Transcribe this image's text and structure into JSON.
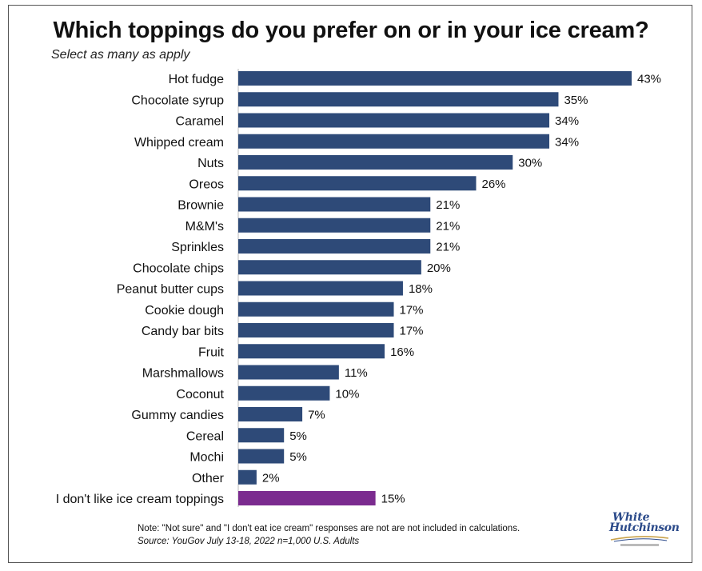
{
  "title": "Which toppings do you prefer on or in your ice cream?",
  "subtitle": "Select as many as apply",
  "note": "Note: \"Not sure\" and \"I don't eat ice cream\" responses are not are not included in calculations.",
  "source": "Source: YouGov July 13-18, 2022 n=1,000 U.S. Adults",
  "logo": {
    "line1": "White",
    "line2": "Hutchinson"
  },
  "colors": {
    "bar": "#2e4a78",
    "highlight": "#7b2b8f",
    "logo": "#2b4a8a"
  },
  "chart_data": {
    "type": "bar",
    "orientation": "horizontal",
    "categories": [
      "Hot fudge",
      "Chocolate syrup",
      "Caramel",
      "Whipped cream",
      "Nuts",
      "Oreos",
      "Brownie",
      "M&M's",
      "Sprinkles",
      "Chocolate chips",
      "Peanut butter cups",
      "Cookie dough",
      "Candy bar bits",
      "Fruit",
      "Marshmallows",
      "Coconut",
      "Gummy candies",
      "Cereal",
      "Mochi",
      "Other",
      "I don't like ice cream toppings"
    ],
    "values": [
      43,
      35,
      34,
      34,
      30,
      26,
      21,
      21,
      21,
      20,
      18,
      17,
      17,
      16,
      11,
      10,
      7,
      5,
      5,
      2,
      15
    ],
    "labels": [
      "43%",
      "35%",
      "34%",
      "34%",
      "30%",
      "26%",
      "21%",
      "21%",
      "21%",
      "20%",
      "18%",
      "17%",
      "17%",
      "16%",
      "11%",
      "10%",
      "7%",
      "5%",
      "5%",
      "2%",
      "15%"
    ],
    "highlight_category": "I don't like ice cream toppings",
    "xlim": [
      0,
      43
    ],
    "grid": false,
    "legend": false
  }
}
